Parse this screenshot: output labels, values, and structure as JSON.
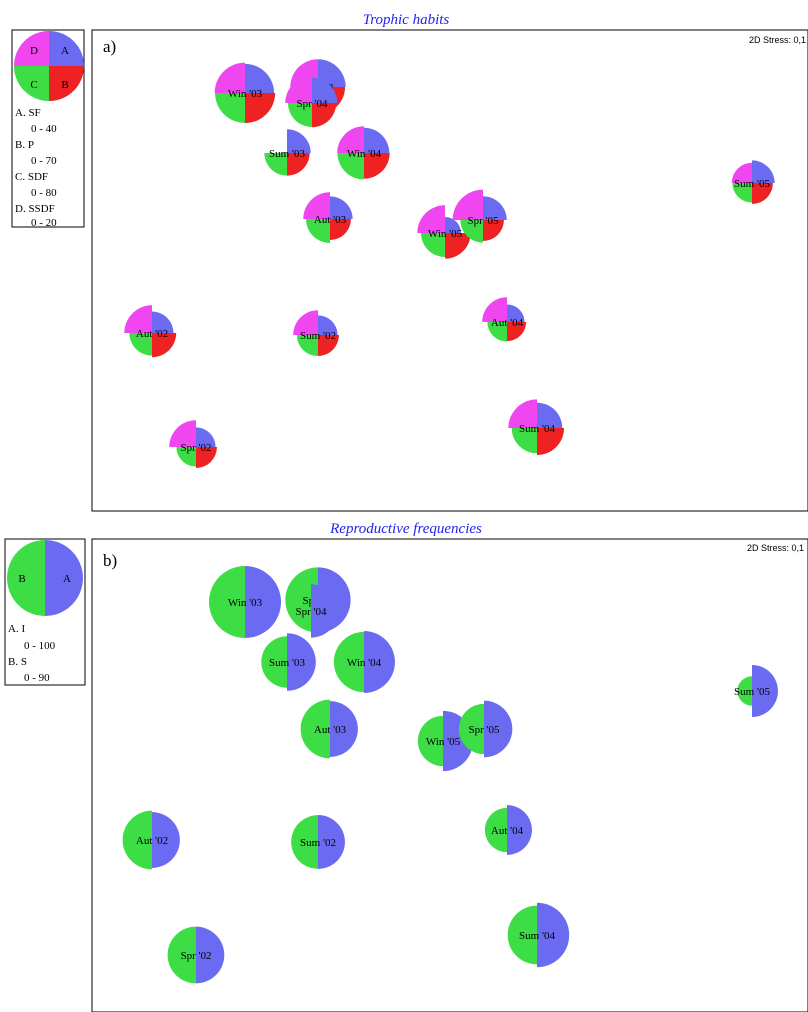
{
  "chart_data": [
    {
      "type": "scatter",
      "title": "Trophic habits",
      "panel": "a)",
      "stress": "2D Stress: 0,1",
      "legend": {
        "quadrant_letters": [
          "A",
          "B",
          "C",
          "D"
        ],
        "items": [
          {
            "label": "A. SF",
            "range": "0 - 40"
          },
          {
            "label": "B. P",
            "range": "0 - 70"
          },
          {
            "label": "C. SDF",
            "range": "0 - 80"
          },
          {
            "label": "D. SSDF",
            "range": "0 - 20"
          }
        ],
        "max": [
          40,
          70,
          80,
          20
        ]
      },
      "colors": {
        "A": "#6b6bf2",
        "B": "#ee2222",
        "C": "#3ddd45",
        "D": "#ef46ef"
      },
      "points": [
        {
          "label": "Win '03",
          "x": 0.2,
          "y": 0.18,
          "values": [
            33,
            62,
            70,
            18
          ]
        },
        {
          "label": "Spr '03",
          "x": 0.3,
          "y": 0.1,
          "values": [
            30,
            50,
            55,
            15
          ]
        },
        {
          "label": "Spr '04",
          "x": 0.3,
          "y": 0.18,
          "values": [
            25,
            40,
            45,
            14
          ]
        },
        {
          "label": "Sum '03",
          "x": 0.2,
          "y": 0.3,
          "values": [
            22,
            35,
            40,
            0
          ]
        },
        {
          "label": "Win '04",
          "x": 0.38,
          "y": 0.3,
          "values": [
            25,
            45,
            55,
            14
          ]
        },
        {
          "label": "Sum '05",
          "x": 0.95,
          "y": 0.3,
          "values": [
            20,
            30,
            30,
            8
          ]
        },
        {
          "label": "Aut '03",
          "x": 0.32,
          "y": 0.44,
          "values": [
            20,
            30,
            45,
            14
          ]
        },
        {
          "label": "Win '05",
          "x": 0.5,
          "y": 0.48,
          "values": [
            10,
            45,
            45,
            15
          ]
        },
        {
          "label": "Spr '05",
          "x": 0.57,
          "y": 0.43,
          "values": [
            22,
            30,
            40,
            18
          ]
        },
        {
          "label": "Aut '02",
          "x": 0.0,
          "y": 0.68,
          "values": [
            18,
            40,
            40,
            15
          ]
        },
        {
          "label": "Sum '02",
          "x": 0.3,
          "y": 0.68,
          "values": [
            15,
            30,
            35,
            12
          ]
        },
        {
          "label": "Aut '04",
          "x": 0.6,
          "y": 0.68,
          "values": [
            12,
            25,
            30,
            12
          ]
        },
        {
          "label": "Spr '02",
          "x": 0.1,
          "y": 0.9,
          "values": [
            15,
            30,
            30,
            14
          ]
        },
        {
          "label": "Sum '04",
          "x": 0.65,
          "y": 0.88,
          "values": [
            25,
            50,
            50,
            16
          ]
        }
      ]
    },
    {
      "type": "scatter",
      "title": "Reproductive frequencies",
      "panel": "b)",
      "stress": "2D Stress: 0,1",
      "legend": {
        "half_letters": [
          "A",
          "B"
        ],
        "items": [
          {
            "label": "A. I",
            "range": "0 - 100"
          },
          {
            "label": "B. S",
            "range": "0 - 90"
          }
        ],
        "max": [
          100,
          90
        ]
      },
      "colors": {
        "A": "#6b6bf2",
        "B": "#3ddd45"
      },
      "points": [
        {
          "label": "Win '03",
          "x": 0.2,
          "y": 0.14,
          "values": [
            100,
            90
          ]
        },
        {
          "label": "Spr '03",
          "x": 0.3,
          "y": 0.12,
          "values": [
            82,
            74
          ]
        },
        {
          "label": "Spr '04",
          "x": 0.3,
          "y": 0.15,
          "values": [
            55,
            0
          ]
        },
        {
          "label": "Sum '03",
          "x": 0.2,
          "y": 0.28,
          "values": [
            64,
            46
          ]
        },
        {
          "label": "Win '04",
          "x": 0.38,
          "y": 0.28,
          "values": [
            74,
            63
          ]
        },
        {
          "label": "Sum '05",
          "x": 0.95,
          "y": 0.35,
          "values": [
            52,
            15
          ]
        },
        {
          "label": "Aut '03",
          "x": 0.32,
          "y": 0.44,
          "values": [
            60,
            60
          ]
        },
        {
          "label": "Win '05",
          "x": 0.5,
          "y": 0.48,
          "values": [
            70,
            44
          ]
        },
        {
          "label": "Spr '05",
          "x": 0.57,
          "y": 0.43,
          "values": [
            62,
            44
          ]
        },
        {
          "label": "Aut '02",
          "x": 0.0,
          "y": 0.68,
          "values": [
            60,
            60
          ]
        },
        {
          "label": "Sum '02",
          "x": 0.3,
          "y": 0.68,
          "values": [
            56,
            50
          ]
        },
        {
          "label": "Aut '04",
          "x": 0.6,
          "y": 0.68,
          "values": [
            48,
            34
          ]
        },
        {
          "label": "Spr '02",
          "x": 0.1,
          "y": 0.9,
          "values": [
            62,
            56
          ]
        },
        {
          "label": "Sum '04",
          "x": 0.65,
          "y": 0.88,
          "values": [
            80,
            60
          ]
        }
      ]
    }
  ]
}
